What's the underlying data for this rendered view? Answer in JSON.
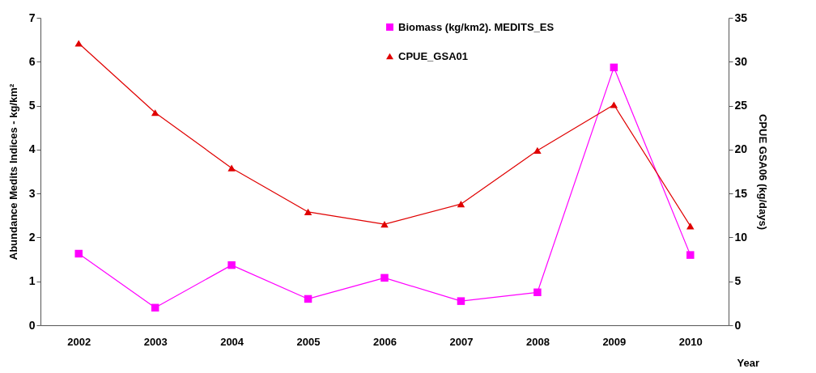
{
  "chart_data": {
    "type": "line",
    "xlabel": "Year",
    "ylabel": "Abundance Medits Indices - kg/km²",
    "y2label": "CPUE GSA06 (kg/days)",
    "categories": [
      "2002",
      "2003",
      "2004",
      "2005",
      "2006",
      "2007",
      "2008",
      "2009",
      "2010"
    ],
    "series": [
      {
        "name": "Biomass (kg/km2). MEDITS_ES",
        "color": "#ff00ff",
        "marker": "square",
        "values": [
          1.63,
          0.4,
          1.37,
          0.6,
          1.08,
          0.55,
          0.75,
          5.87,
          1.6
        ]
      },
      {
        "name": "CPUE_GSA01",
        "color": "#e00000",
        "marker": "triangle",
        "axis": "y2",
        "values": [
          32.1,
          24.2,
          17.9,
          12.9,
          11.5,
          13.8,
          19.9,
          25.1,
          11.3
        ]
      }
    ],
    "ylim": [
      0,
      7
    ],
    "yticks": [
      0,
      1,
      2,
      3,
      4,
      5,
      6,
      7
    ],
    "y2lim": [
      0,
      35
    ],
    "y2ticks": [
      0,
      5,
      10,
      15,
      20,
      25,
      30,
      35
    ],
    "legend": "top",
    "grid": false
  }
}
